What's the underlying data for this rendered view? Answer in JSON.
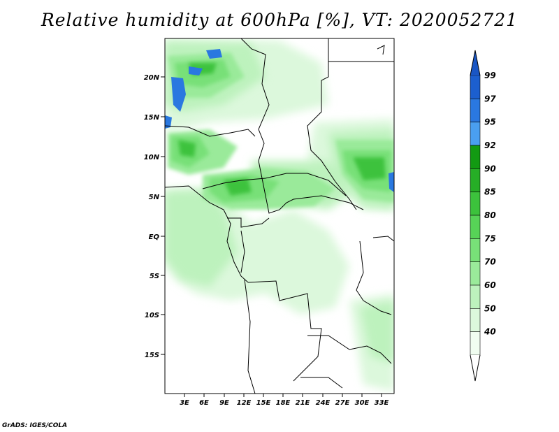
{
  "title": "Relative humidity at 600hPa [%], VT: 2020052721",
  "credit": "GrADS: IGES/COLA",
  "lat_labels": [
    "20N",
    "15N",
    "10N",
    "5N",
    "EQ",
    "5S",
    "10S",
    "15S"
  ],
  "lon_labels": [
    "3E",
    "6E",
    "9E",
    "12E",
    "15E",
    "18E",
    "21E",
    "24E",
    "27E",
    "30E",
    "33E"
  ],
  "colorbar": {
    "labels": [
      "99",
      "97",
      "95",
      "92",
      "90",
      "85",
      "80",
      "75",
      "70",
      "60",
      "50",
      "40"
    ],
    "colors": [
      "#1c5fcf",
      "#2a78e0",
      "#4a9ff0",
      "#129a12",
      "#26ae26",
      "#3cc23c",
      "#57d357",
      "#78e078",
      "#9aea9a",
      "#bdf2bd",
      "#dcf8dc",
      "#f0fdf0"
    ]
  }
}
